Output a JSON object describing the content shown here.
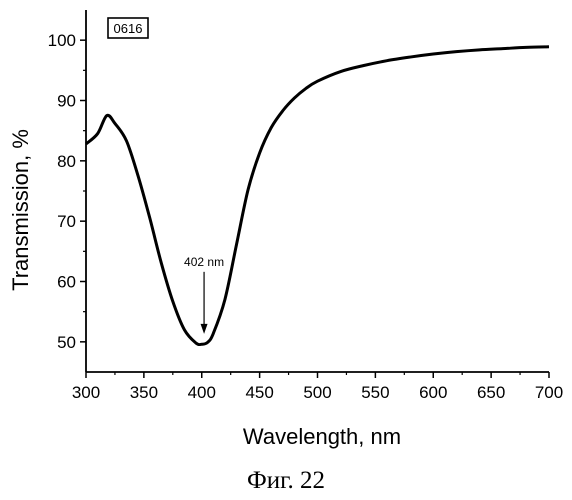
{
  "chart_data": {
    "type": "line",
    "sample_id": "0616",
    "xlabel": "Wavelength, nm",
    "ylabel": "Transmission, %",
    "xlim": [
      300,
      700
    ],
    "ylim": [
      45,
      105
    ],
    "x_ticks": [
      300,
      350,
      400,
      450,
      500,
      550,
      600,
      650,
      700
    ],
    "y_ticks": [
      50,
      60,
      70,
      80,
      90,
      100
    ],
    "annotation": {
      "text": "402 nm",
      "x": 402,
      "y": 50
    },
    "grid": false,
    "series": [
      {
        "x": [
          300,
          310,
          318,
          325,
          335,
          345,
          355,
          365,
          375,
          385,
          395,
          400,
          405,
          410,
          420,
          430,
          440,
          450,
          460,
          470,
          480,
          490,
          500,
          520,
          540,
          560,
          580,
          600,
          620,
          640,
          660,
          680,
          700
        ],
        "values": [
          82.8,
          84.5,
          87.5,
          86.2,
          83.3,
          77.5,
          70.6,
          63.1,
          56.7,
          52.0,
          49.8,
          49.6,
          49.9,
          51.4,
          57.0,
          66.1,
          75.2,
          81.3,
          85.5,
          88.3,
          90.4,
          92.0,
          93.2,
          94.8,
          95.8,
          96.6,
          97.2,
          97.7,
          98.1,
          98.4,
          98.6,
          98.8,
          98.9
        ]
      }
    ]
  },
  "caption": "Фиг. 22"
}
